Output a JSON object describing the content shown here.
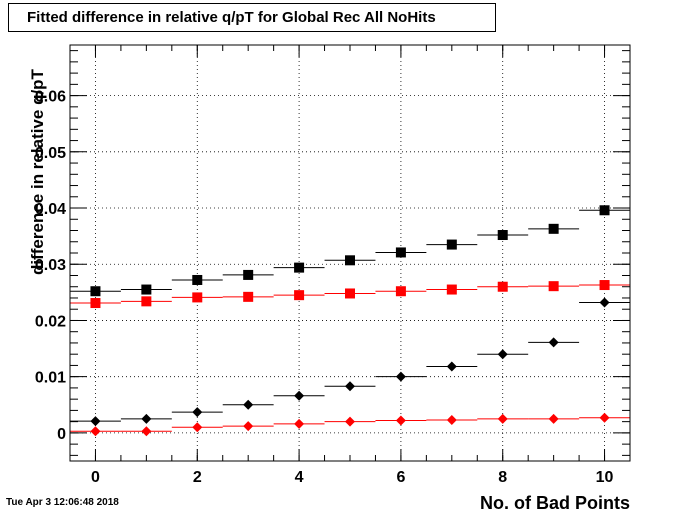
{
  "title": "Fitted difference in relative q/pT for Global Rec All NoHits",
  "timestamp": "Tue Apr  3 12:06:48 2018",
  "chart_data": {
    "type": "scatter",
    "xlabel": "No. of Bad Points",
    "ylabel": "difference in relative q/pT",
    "xlim": [
      -0.5,
      10.5
    ],
    "ylim": [
      -0.005,
      0.069
    ],
    "xticks": [
      "0",
      "2",
      "4",
      "6",
      "8",
      "10"
    ],
    "yticks": [
      "0",
      "0.01",
      "0.02",
      "0.03",
      "0.04",
      "0.05",
      "0.06"
    ],
    "grid": true,
    "x": [
      0,
      1,
      2,
      3,
      4,
      5,
      6,
      7,
      8,
      9,
      10
    ],
    "series": [
      {
        "marker": "square",
        "color": "#000000",
        "values": [
          0.0252,
          0.0255,
          0.0272,
          0.0281,
          0.0294,
          0.0307,
          0.0321,
          0.0335,
          0.0352,
          0.0363,
          0.0396
        ]
      },
      {
        "marker": "square",
        "color": "#ff0000",
        "values": [
          0.0231,
          0.0234,
          0.0241,
          0.0242,
          0.0245,
          0.0248,
          0.0252,
          0.0255,
          0.026,
          0.0261,
          0.0263
        ]
      },
      {
        "marker": "diamond",
        "color": "#000000",
        "values": [
          0.0021,
          0.0025,
          0.0037,
          0.005,
          0.0066,
          0.0083,
          0.01,
          0.0118,
          0.014,
          0.0161,
          0.0232
        ]
      },
      {
        "marker": "diamond",
        "color": "#ff0000",
        "values": [
          0.0003,
          0.0003,
          0.001,
          0.0012,
          0.0016,
          0.002,
          0.0022,
          0.0023,
          0.0025,
          0.0025,
          0.0027
        ]
      }
    ]
  }
}
